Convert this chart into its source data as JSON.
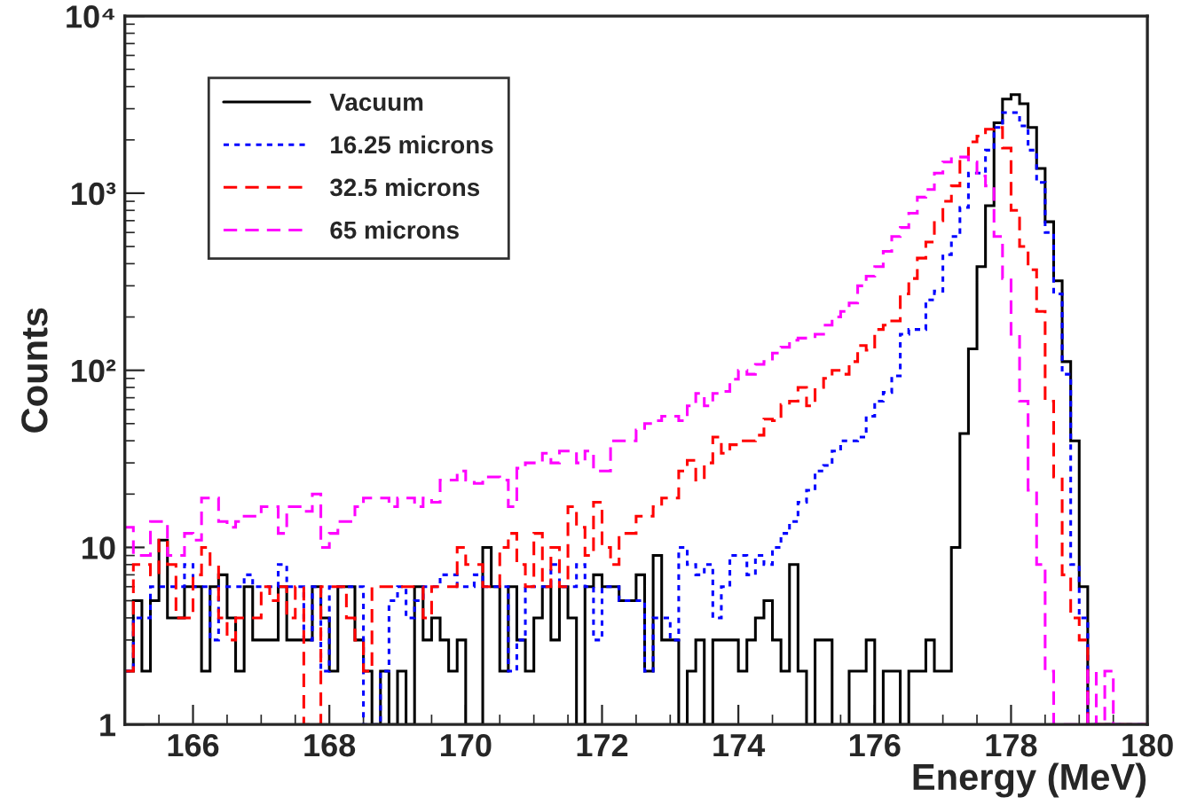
{
  "chart_data": {
    "type": "histogram",
    "xlabel": "Energy (MeV)",
    "ylabel": "Counts",
    "bins": [
      165,
      165.125,
      165.25,
      165.375,
      165.5,
      165.625,
      165.75,
      165.875,
      166,
      166.125,
      166.25,
      166.375,
      166.5,
      166.625,
      166.75,
      166.875,
      167,
      167.125,
      167.25,
      167.375,
      167.5,
      167.625,
      167.75,
      167.875,
      168,
      168.125,
      168.25,
      168.375,
      168.5,
      168.625,
      168.75,
      168.875,
      169,
      169.125,
      169.25,
      169.375,
      169.5,
      169.625,
      169.75,
      169.875,
      170,
      170.125,
      170.25,
      170.375,
      170.5,
      170.625,
      170.75,
      170.875,
      171,
      171.125,
      171.25,
      171.375,
      171.5,
      171.625,
      171.75,
      171.875,
      172,
      172.125,
      172.25,
      172.375,
      172.5,
      172.625,
      172.75,
      172.875,
      173,
      173.125,
      173.25,
      173.375,
      173.5,
      173.625,
      173.75,
      173.875,
      174,
      174.125,
      174.25,
      174.375,
      174.5,
      174.625,
      174.75,
      174.875,
      175,
      175.125,
      175.25,
      175.375,
      175.5,
      175.625,
      175.75,
      175.875,
      176,
      176.125,
      176.25,
      176.375,
      176.5,
      176.625,
      176.75,
      176.875,
      177,
      177.125,
      177.25,
      177.375,
      177.5,
      177.625,
      177.75,
      177.875,
      178,
      178.125,
      178.25,
      178.375,
      178.5,
      178.625,
      178.75,
      178.875,
      179,
      179.125,
      179.25,
      179.375,
      179.5,
      179.625,
      179.75,
      179.875,
      180
    ],
    "series": [
      {
        "name": "Vacuum",
        "color": "#000000",
        "line_style": "solid",
        "values": [
          2,
          5,
          2,
          5,
          11,
          4,
          4,
          6,
          6,
          2,
          6,
          7,
          4,
          2,
          6,
          3,
          3,
          3,
          6,
          3,
          3,
          3,
          6,
          4,
          2,
          6,
          6,
          3,
          2,
          1,
          2,
          1,
          2,
          1,
          6,
          3,
          4,
          3,
          2,
          3,
          1,
          1,
          10,
          6,
          2,
          6,
          3,
          2,
          4,
          6,
          3,
          6,
          4,
          1,
          6,
          7,
          6,
          6,
          5,
          5,
          7,
          2,
          9,
          3,
          3,
          1,
          2,
          3,
          1,
          3,
          3,
          3,
          2,
          3,
          4,
          5,
          3,
          2,
          8,
          2,
          1,
          3,
          3,
          1,
          1,
          2,
          2,
          3,
          1,
          2,
          2,
          1,
          2,
          2,
          3,
          2,
          2,
          10,
          44,
          132,
          385,
          850,
          2500,
          3400,
          3600,
          3200,
          2350,
          1380,
          690,
          320,
          112,
          40,
          6,
          1,
          1,
          1,
          1,
          1,
          1,
          1
        ]
      },
      {
        "name": "16.25 microns",
        "color": "#0000ff",
        "line_style": "dotted",
        "values": [
          2,
          4,
          4,
          6,
          6,
          6,
          6,
          8,
          6,
          6,
          3,
          6,
          6,
          6,
          7,
          6,
          6,
          6,
          8,
          6,
          6,
          3,
          6,
          2,
          6,
          6,
          6,
          6,
          1,
          1,
          2,
          5,
          6,
          4,
          5,
          6,
          6,
          7,
          7,
          6,
          6,
          7,
          6,
          6,
          6,
          2,
          3,
          6,
          6,
          6,
          8,
          6,
          6,
          8,
          6,
          3,
          6,
          6,
          5,
          5,
          5,
          2,
          4,
          4,
          3,
          10,
          8,
          7,
          8,
          4,
          6,
          9,
          9,
          7,
          9,
          8,
          10,
          12,
          14,
          18,
          21,
          27,
          29,
          35,
          40,
          40,
          42,
          55,
          67,
          75,
          93,
          160,
          170,
          170,
          250,
          280,
          450,
          570,
          830,
          1300,
          1300,
          1750,
          2350,
          2850,
          2850,
          2400,
          1750,
          1150,
          600,
          270,
          95,
          8,
          4,
          1,
          1,
          1,
          1,
          1,
          1,
          1
        ]
      },
      {
        "name": "32.5 microns",
        "color": "#ff0000",
        "line_style": "dashed",
        "values": [
          2,
          8,
          8,
          7,
          11,
          8,
          4,
          4,
          7,
          10,
          8,
          4,
          3,
          4,
          4,
          4,
          6,
          5,
          6,
          4,
          6,
          1,
          1,
          6,
          6,
          6,
          4,
          3,
          2,
          6,
          6,
          6,
          6,
          6,
          6,
          4,
          6,
          6,
          6,
          10,
          8,
          8,
          6,
          6,
          10,
          12,
          8,
          6,
          12,
          6,
          10,
          6,
          17,
          13,
          9,
          18,
          10,
          8,
          12,
          12,
          15,
          15,
          17,
          19,
          19,
          27,
          31,
          24,
          30,
          42,
          34,
          38,
          40,
          40,
          43,
          53,
          52,
          64,
          67,
          80,
          63,
          80,
          90,
          100,
          95,
          112,
          138,
          130,
          170,
          180,
          190,
          270,
          330,
          430,
          530,
          700,
          900,
          1100,
          1550,
          1950,
          2100,
          2300,
          2350,
          1800,
          800,
          500,
          370,
          215,
          67,
          25,
          7,
          4,
          3,
          1,
          1,
          1,
          1,
          1,
          1,
          1
        ]
      },
      {
        "name": "65 microns",
        "color": "#ff00ff",
        "line_style": "dashed",
        "values": [
          13,
          9,
          9,
          14,
          14,
          9,
          9,
          12,
          11,
          19,
          19,
          14,
          13,
          14,
          15,
          15,
          17,
          17,
          12,
          17,
          17,
          16,
          20,
          10,
          12,
          14,
          14,
          17,
          19,
          19,
          19,
          17,
          19,
          19,
          17,
          19,
          18,
          24,
          24,
          27,
          24,
          23,
          25,
          25,
          24,
          17,
          28,
          30,
          30,
          34,
          30,
          35,
          35,
          30,
          35,
          27,
          27,
          40,
          40,
          40,
          46,
          50,
          52,
          55,
          55,
          52,
          63,
          74,
          63,
          74,
          76,
          89,
          100,
          95,
          108,
          112,
          125,
          135,
          148,
          152,
          152,
          160,
          180,
          200,
          215,
          240,
          300,
          340,
          385,
          470,
          570,
          640,
          770,
          950,
          1050,
          1300,
          1500,
          1600,
          1600,
          1500,
          1250,
          1100,
          570,
          330,
          160,
          67,
          21,
          8,
          2,
          1,
          1,
          1,
          1,
          2,
          1,
          2,
          1,
          1,
          1,
          1
        ]
      }
    ],
    "xlim": [
      165,
      180
    ],
    "xticks": [
      166,
      168,
      170,
      172,
      174,
      176,
      178,
      180
    ],
    "log": true,
    "ylim": [
      1,
      10000
    ],
    "yticks": [
      1,
      10,
      {
        "value": 100,
        "label": "10²"
      },
      {
        "value": 1000,
        "label": "10³"
      },
      {
        "value": 10000,
        "label": "10⁴"
      }
    ],
    "legend": "top left",
    "grid": false
  }
}
